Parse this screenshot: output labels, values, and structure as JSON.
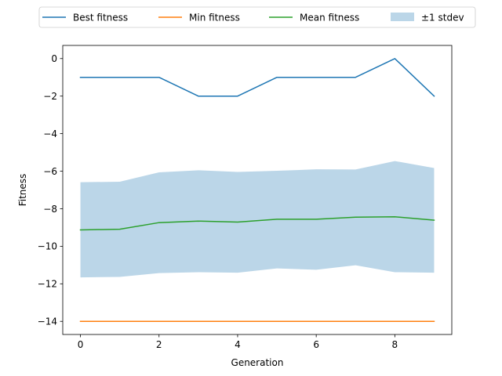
{
  "chart_data": {
    "type": "line",
    "xlabel": "Generation",
    "ylabel": "Fitness",
    "xlim": [
      -0.45,
      9.45
    ],
    "ylim": [
      -14.7,
      0.7
    ],
    "xticks": [
      0,
      2,
      4,
      6,
      8
    ],
    "yticks": [
      0,
      -2,
      -4,
      -6,
      -8,
      -10,
      -12,
      -14
    ],
    "x": [
      0,
      1,
      2,
      3,
      4,
      5,
      6,
      7,
      8,
      9
    ],
    "grid": false,
    "legend_position": "top-center",
    "series": [
      {
        "name": "Best fitness",
        "color": "#1f77b4",
        "values": [
          -1,
          -1,
          -1,
          -2,
          -2,
          -1,
          -1,
          -1,
          0,
          -2
        ]
      },
      {
        "name": "Min fitness",
        "color": "#ff7f0e",
        "values": [
          -14,
          -14,
          -14,
          -14,
          -14,
          -14,
          -14,
          -14,
          -14,
          -14
        ]
      },
      {
        "name": "Mean fitness",
        "color": "#2ca02c",
        "values": [
          -9.13,
          -9.09,
          -8.74,
          -8.66,
          -8.71,
          -8.56,
          -8.56,
          -8.45,
          -8.43,
          -8.61
        ]
      }
    ],
    "band": {
      "name": "±1 stdev",
      "color": "#1f77b4",
      "opacity": 0.3,
      "upper": [
        -6.59,
        -6.56,
        -6.06,
        -5.95,
        -6.04,
        -5.98,
        -5.9,
        -5.91,
        -5.46,
        -5.83
      ],
      "lower": [
        -11.66,
        -11.63,
        -11.43,
        -11.38,
        -11.41,
        -11.18,
        -11.25,
        -11.01,
        -11.38,
        -11.41
      ]
    }
  }
}
